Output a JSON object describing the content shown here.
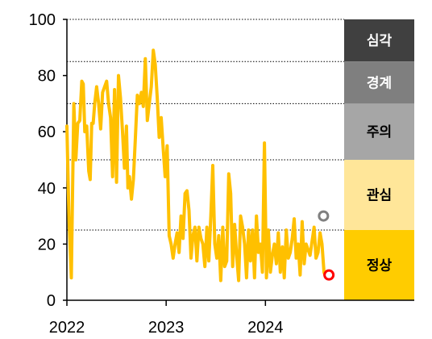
{
  "chart_data": {
    "type": "line",
    "title": "",
    "xlabel": "",
    "ylabel": "",
    "xlim": [
      2022.0,
      2024.72
    ],
    "ylim": [
      0,
      100
    ],
    "y_ticks": [
      "0",
      "20",
      "40",
      "60",
      "80",
      "100"
    ],
    "x_ticks": [
      {
        "value": 2022,
        "label": "2022"
      },
      {
        "value": 2023,
        "label": "2023"
      },
      {
        "value": 2024,
        "label": "2024"
      }
    ],
    "threshold_lines": [
      25,
      50,
      70,
      85,
      100
    ],
    "grid": "dotted horizontal at zone thresholds",
    "line_color": "#FFC000",
    "series": [
      {
        "x": [
          2022.0,
          2022.02,
          2022.045,
          2022.07,
          2022.09,
          2022.11,
          2022.13,
          2022.15,
          2022.165,
          2022.18,
          2022.2,
          2022.22,
          2022.235,
          2022.25,
          2022.265,
          2022.28,
          2022.3,
          2022.32,
          2022.34,
          2022.36,
          2022.38,
          2022.4,
          2022.42,
          2022.44,
          2022.46,
          2022.48,
          2022.5,
          2022.52,
          2022.54,
          2022.56,
          2022.58,
          2022.6,
          2022.615,
          2022.63,
          2022.65,
          2022.67,
          2022.69,
          2022.71,
          2022.73,
          2022.75,
          2022.77,
          2022.79,
          2022.81,
          2022.83,
          2022.85,
          2022.87,
          2022.89,
          2022.91,
          2022.93,
          2022.95,
          2022.97,
          2022.99,
          2023.01,
          2023.03,
          2023.05,
          2023.07,
          2023.09,
          2023.11,
          2023.13,
          2023.15,
          2023.17,
          2023.19,
          2023.21,
          2023.23,
          2023.25,
          2023.27,
          2023.29,
          2023.31,
          2023.33,
          2023.35,
          2023.37,
          2023.39,
          2023.41,
          2023.43,
          2023.45,
          2023.47,
          2023.49,
          2023.51,
          2023.53,
          2023.55,
          2023.57,
          2023.59,
          2023.61,
          2023.63,
          2023.65,
          2023.67,
          2023.69,
          2023.71,
          2023.73,
          2023.75,
          2023.77,
          2023.79,
          2023.81,
          2023.83,
          2023.85,
          2023.87,
          2023.89,
          2023.91,
          2023.93,
          2023.95,
          2023.97,
          2023.99,
          2024.01,
          2024.03,
          2024.05,
          2024.07,
          2024.09,
          2024.11,
          2024.13,
          2024.15,
          2024.17,
          2024.19,
          2024.21,
          2024.23,
          2024.25,
          2024.27,
          2024.29,
          2024.31,
          2024.33,
          2024.35,
          2024.37,
          2024.39,
          2024.41,
          2024.43,
          2024.45,
          2024.47,
          2024.49,
          2024.51,
          2024.53,
          2024.55,
          2024.57,
          2024.59,
          2024.6
        ],
        "values": [
          62,
          30,
          8,
          70,
          50,
          63,
          64,
          78,
          77,
          60,
          62,
          46,
          43,
          63,
          63,
          70,
          76,
          70,
          61,
          74,
          76,
          78,
          70,
          65,
          44,
          75,
          42,
          80,
          72,
          60,
          47,
          62,
          40,
          44,
          36,
          43,
          58,
          73,
          70,
          74,
          69,
          86,
          64,
          70,
          76,
          89,
          84,
          72,
          58,
          65,
          54,
          44,
          55,
          23,
          20,
          15,
          20,
          24,
          17,
          30,
          22,
          38,
          39,
          32,
          15,
          23,
          26,
          14,
          26,
          22,
          20,
          12,
          26,
          14,
          30,
          48,
          20,
          15,
          23,
          7,
          26,
          12,
          14,
          45,
          38,
          12,
          27,
          16,
          7,
          30,
          26,
          20,
          8,
          25,
          14,
          25,
          8,
          30,
          17,
          20,
          10,
          56,
          8,
          25,
          10,
          16,
          20,
          13,
          24,
          10,
          19,
          8,
          25,
          15,
          17,
          22,
          29,
          15,
          20,
          9,
          28,
          13,
          20,
          18,
          16,
          21,
          26,
          15,
          17,
          24,
          20,
          10,
          9
        ]
      }
    ],
    "markers": [
      {
        "x": 2024.585,
        "y": 30,
        "color": "#808080"
      },
      {
        "x": 2024.64,
        "y": 9,
        "color": "#FF0000"
      }
    ],
    "zones": [
      {
        "label": "심각",
        "from": 85,
        "to": 100,
        "color": "#404040",
        "text_color": "#ffffff"
      },
      {
        "label": "경계",
        "from": 70,
        "to": 85,
        "color": "#7F7F7F",
        "text_color": "#ffffff"
      },
      {
        "label": "주의",
        "from": 50,
        "to": 70,
        "color": "#A6A6A6",
        "text_color": "#000000"
      },
      {
        "label": "관심",
        "from": 25,
        "to": 50,
        "color": "#FFE699",
        "text_color": "#000000"
      },
      {
        "label": "정상",
        "from": 0,
        "to": 25,
        "color": "#FFCC00",
        "text_color": "#000000"
      }
    ]
  }
}
